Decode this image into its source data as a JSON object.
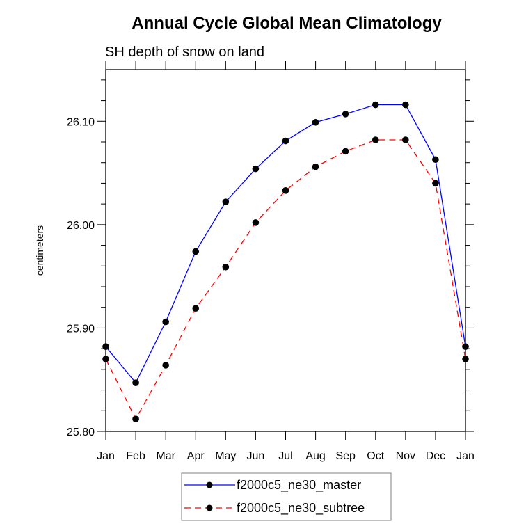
{
  "chart_data": {
    "type": "line",
    "title": "Annual Cycle Global Mean Climatology",
    "subtitle": "SH depth of snow on land",
    "xlabel": "",
    "ylabel": "centimeters",
    "categories": [
      "Jan",
      "Feb",
      "Mar",
      "Apr",
      "May",
      "Jun",
      "Jul",
      "Aug",
      "Sep",
      "Oct",
      "Nov",
      "Dec",
      "Jan"
    ],
    "ylim": [
      25.8,
      26.15
    ],
    "yticks": [
      {
        "value": 25.8,
        "label": "25.80"
      },
      {
        "value": 25.9,
        "label": "25.90"
      },
      {
        "value": 26.0,
        "label": "26.00"
      },
      {
        "value": 26.1,
        "label": "26.10"
      }
    ],
    "yminor_step": 0.02,
    "grid": false,
    "legend_position": "bottom-center",
    "series": [
      {
        "name": "f2000c5_ne30_master",
        "color": "#0000ff",
        "dash": "solid",
        "marker": "filled-circle",
        "values": [
          25.882,
          25.847,
          25.906,
          25.974,
          26.022,
          26.054,
          26.081,
          26.099,
          26.107,
          26.116,
          26.116,
          26.063,
          25.882
        ]
      },
      {
        "name": "f2000c5_ne30_subtree",
        "color": "#ff0000",
        "dash": "dashed",
        "marker": "filled-circle",
        "values": [
          25.87,
          25.812,
          25.864,
          25.919,
          25.959,
          26.002,
          26.033,
          26.056,
          26.071,
          26.082,
          26.082,
          26.04,
          25.87
        ]
      }
    ]
  }
}
